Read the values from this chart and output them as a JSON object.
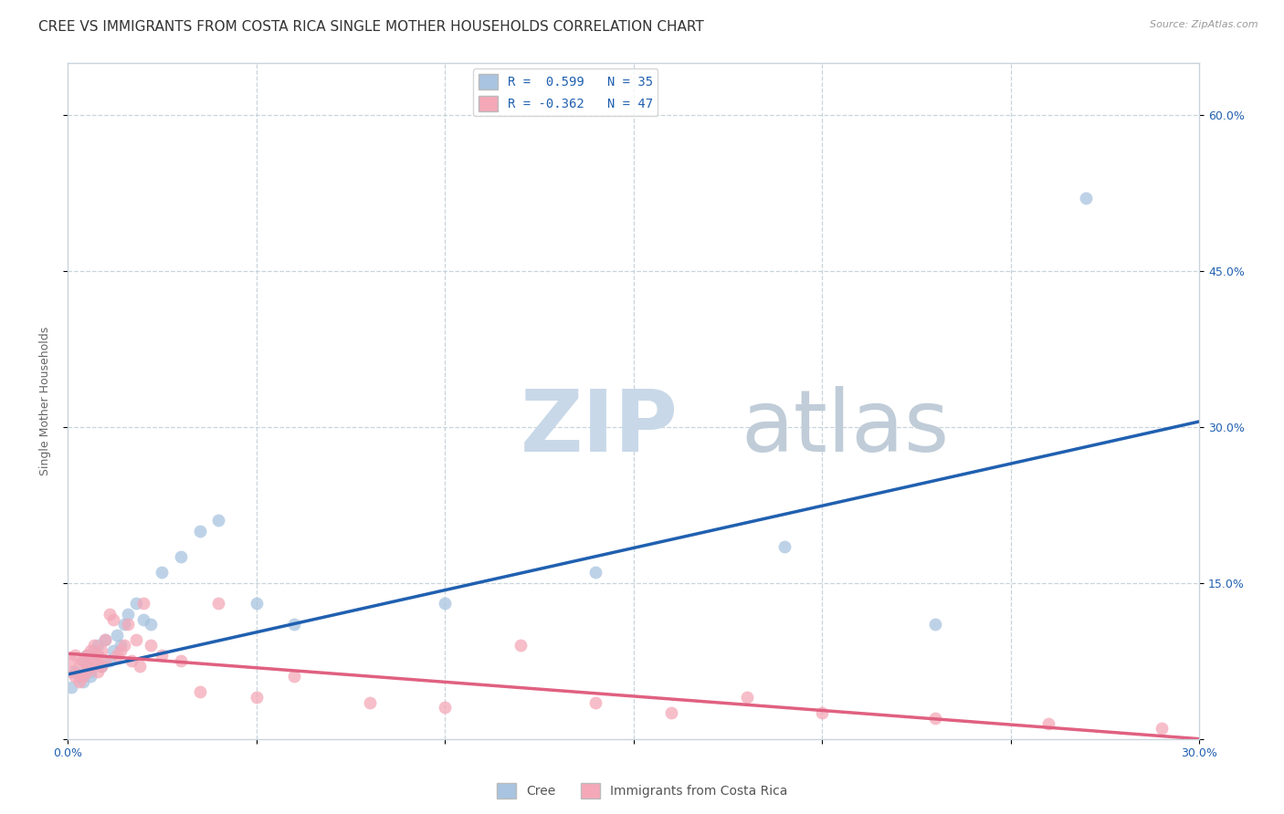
{
  "title": "CREE VS IMMIGRANTS FROM COSTA RICA SINGLE MOTHER HOUSEHOLDS CORRELATION CHART",
  "source": "Source: ZipAtlas.com",
  "ylabel": "Single Mother Households",
  "xlim": [
    0.0,
    0.3
  ],
  "ylim": [
    0.0,
    0.65
  ],
  "cree_color": "#a8c4e0",
  "costa_rica_color": "#f4a8b8",
  "cree_line_color": "#2060b0",
  "costa_rica_line_color": "#e06080",
  "background_color": "#ffffff",
  "watermark_zip": "ZIP",
  "watermark_atlas": "atlas",
  "watermark_color_zip": "#c8d8e8",
  "watermark_color_atlas": "#c0ccd8",
  "grid_color": "#c8d4dc",
  "title_fontsize": 11,
  "axis_fontsize": 9,
  "tick_fontsize": 9,
  "cree_line_start_y": 0.062,
  "cree_line_end_y": 0.305,
  "cr_line_start_y": 0.082,
  "cr_line_end_y": 0.0,
  "cree_scatter_x": [
    0.001,
    0.002,
    0.003,
    0.004,
    0.004,
    0.005,
    0.005,
    0.006,
    0.006,
    0.007,
    0.007,
    0.008,
    0.008,
    0.009,
    0.01,
    0.011,
    0.012,
    0.013,
    0.014,
    0.015,
    0.016,
    0.018,
    0.02,
    0.022,
    0.025,
    0.03,
    0.035,
    0.04,
    0.05,
    0.06,
    0.1,
    0.14,
    0.19,
    0.23,
    0.27
  ],
  "cree_scatter_y": [
    0.05,
    0.065,
    0.06,
    0.075,
    0.055,
    0.07,
    0.08,
    0.065,
    0.06,
    0.085,
    0.075,
    0.09,
    0.08,
    0.07,
    0.095,
    0.075,
    0.085,
    0.1,
    0.09,
    0.11,
    0.12,
    0.13,
    0.115,
    0.11,
    0.16,
    0.175,
    0.2,
    0.21,
    0.13,
    0.11,
    0.13,
    0.16,
    0.185,
    0.11,
    0.52
  ],
  "costa_rica_scatter_x": [
    0.001,
    0.001,
    0.002,
    0.002,
    0.003,
    0.003,
    0.004,
    0.004,
    0.005,
    0.005,
    0.006,
    0.006,
    0.007,
    0.007,
    0.008,
    0.008,
    0.009,
    0.009,
    0.01,
    0.01,
    0.011,
    0.012,
    0.013,
    0.014,
    0.015,
    0.016,
    0.017,
    0.018,
    0.019,
    0.02,
    0.022,
    0.025,
    0.03,
    0.035,
    0.04,
    0.05,
    0.06,
    0.08,
    0.1,
    0.12,
    0.14,
    0.16,
    0.18,
    0.2,
    0.23,
    0.26,
    0.29
  ],
  "costa_rica_scatter_y": [
    0.075,
    0.065,
    0.08,
    0.06,
    0.07,
    0.055,
    0.075,
    0.06,
    0.08,
    0.065,
    0.085,
    0.07,
    0.09,
    0.075,
    0.08,
    0.065,
    0.085,
    0.07,
    0.095,
    0.075,
    0.12,
    0.115,
    0.08,
    0.085,
    0.09,
    0.11,
    0.075,
    0.095,
    0.07,
    0.13,
    0.09,
    0.08,
    0.075,
    0.045,
    0.13,
    0.04,
    0.06,
    0.035,
    0.03,
    0.09,
    0.035,
    0.025,
    0.04,
    0.025,
    0.02,
    0.015,
    0.01
  ]
}
